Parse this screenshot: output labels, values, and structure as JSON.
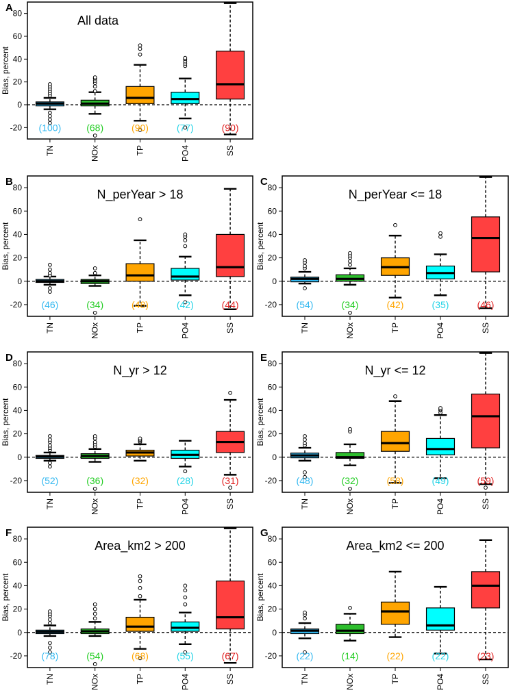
{
  "colors": {
    "TN": "#33B8F0",
    "NOx": "#2DBE2D",
    "TP": "#FFA500",
    "PO4": "#00FFFF",
    "SS": "#FF4040",
    "count_TN": "#33B8F0",
    "count_NOx": "#22CC22",
    "count_TP": "#FFA500",
    "count_PO4": "#22D3E6",
    "count_SS": "#E02020"
  },
  "chart_data": [
    {
      "type": "box",
      "panel": "A",
      "title": "All data",
      "ylabel": "Bias, percent",
      "ylim": [
        -30,
        90
      ],
      "yticks": [
        -20,
        0,
        20,
        40,
        60,
        80
      ],
      "reference_line": 0,
      "categories": [
        "TN",
        "NOx",
        "TP",
        "PO4",
        "SS"
      ],
      "counts": [
        "(100)",
        "(68)",
        "(90)",
        "(77)",
        "(90)"
      ],
      "boxes": [
        {
          "category": "TN",
          "whisker_low": -4,
          "q1": -1,
          "median": 1,
          "q3": 2.5,
          "whisker_high": 6,
          "outliers": [
            -16,
            -13,
            -10,
            -7,
            8,
            10,
            12,
            14,
            16,
            18
          ]
        },
        {
          "category": "NOx",
          "whisker_low": -8,
          "q1": -1,
          "median": 1,
          "q3": 4,
          "whisker_high": 11,
          "outliers": [
            -27,
            12,
            16,
            19,
            21,
            23,
            24
          ]
        },
        {
          "category": "TP",
          "whisker_low": -14,
          "q1": 1,
          "median": 6,
          "q3": 16,
          "whisker_high": 35,
          "outliers": [
            -22,
            44,
            49,
            52
          ]
        },
        {
          "category": "PO4",
          "whisker_low": -12,
          "q1": 1,
          "median": 5,
          "q3": 11,
          "whisker_high": 23,
          "outliers": [
            -20,
            34,
            36,
            38,
            40,
            41
          ]
        },
        {
          "category": "SS",
          "whisker_low": -26,
          "q1": 5,
          "median": 18,
          "q3": 47,
          "whisker_high": 89,
          "outliers": []
        }
      ]
    },
    {
      "type": "box",
      "panel": "B",
      "title": "N_perYear > 18",
      "ylabel": "Bias, percent",
      "ylim": [
        -30,
        90
      ],
      "yticks": [
        -20,
        0,
        20,
        40,
        60,
        80
      ],
      "reference_line": 0,
      "categories": [
        "TN",
        "NOx",
        "TP",
        "PO4",
        "SS"
      ],
      "counts": [
        "(46)",
        "(34)",
        "(48)",
        "(42)",
        "(44)"
      ],
      "boxes": [
        {
          "category": "TN",
          "whisker_low": -3,
          "q1": -1,
          "median": 0,
          "q3": 1.5,
          "whisker_high": 4,
          "outliers": [
            -9,
            -6,
            5,
            7,
            10,
            14
          ]
        },
        {
          "category": "NOx",
          "whisker_low": -4,
          "q1": -2,
          "median": 0,
          "q3": 1.5,
          "whisker_high": 5,
          "outliers": [
            -27,
            7,
            11
          ]
        },
        {
          "category": "TP",
          "whisker_low": -21,
          "q1": 0,
          "median": 5,
          "q3": 15,
          "whisker_high": 35,
          "outliers": [
            53
          ]
        },
        {
          "category": "PO4",
          "whisker_low": -12,
          "q1": 1,
          "median": 4,
          "q3": 11,
          "whisker_high": 21,
          "outliers": [
            -18,
            30,
            35,
            38,
            40
          ]
        },
        {
          "category": "SS",
          "whisker_low": -24,
          "q1": 4,
          "median": 12,
          "q3": 40,
          "whisker_high": 79,
          "outliers": []
        }
      ]
    },
    {
      "type": "box",
      "panel": "C",
      "title": "N_perYear <= 18",
      "ylabel": "Bias, percent",
      "ylim": [
        -30,
        90
      ],
      "yticks": [
        -20,
        0,
        20,
        40,
        60,
        80
      ],
      "reference_line": 0,
      "categories": [
        "TN",
        "NOx",
        "TP",
        "PO4",
        "SS"
      ],
      "counts": [
        "(54)",
        "(34)",
        "(42)",
        "(35)",
        "(46)"
      ],
      "boxes": [
        {
          "category": "TN",
          "whisker_low": -2,
          "q1": -0.5,
          "median": 2,
          "q3": 3.5,
          "whisker_high": 8,
          "outliers": [
            -6,
            11,
            13,
            16,
            18
          ]
        },
        {
          "category": "NOx",
          "whisker_low": -3,
          "q1": 0,
          "median": 2,
          "q3": 5.5,
          "whisker_high": 11,
          "outliers": [
            -27,
            14,
            17,
            20,
            22,
            24
          ]
        },
        {
          "category": "TP",
          "whisker_low": -14,
          "q1": 5,
          "median": 12,
          "q3": 20,
          "whisker_high": 39,
          "outliers": [
            48
          ]
        },
        {
          "category": "PO4",
          "whisker_low": -12,
          "q1": 2,
          "median": 7,
          "q3": 13,
          "whisker_high": 23,
          "outliers": [
            38,
            41
          ]
        },
        {
          "category": "SS",
          "whisker_low": -23,
          "q1": 8,
          "median": 37,
          "q3": 55,
          "whisker_high": 89,
          "outliers": []
        }
      ]
    },
    {
      "type": "box",
      "panel": "D",
      "title": "N_yr > 12",
      "ylabel": "Bias, percent",
      "ylim": [
        -30,
        90
      ],
      "yticks": [
        -20,
        0,
        20,
        40,
        60,
        80
      ],
      "reference_line": 0,
      "categories": [
        "TN",
        "NOx",
        "TP",
        "PO4",
        "SS"
      ],
      "counts": [
        "(52)",
        "(36)",
        "(32)",
        "(28)",
        "(31)"
      ],
      "boxes": [
        {
          "category": "TN",
          "whisker_low": -3,
          "q1": -1,
          "median": 0.5,
          "q3": 1.5,
          "whisker_high": 4,
          "outliers": [
            -8,
            -5,
            6,
            8,
            10,
            13,
            15,
            18
          ]
        },
        {
          "category": "NOx",
          "whisker_low": -4,
          "q1": -1,
          "median": 1,
          "q3": 3,
          "whisker_high": 7,
          "outliers": [
            -27,
            9,
            11,
            13,
            16,
            18
          ]
        },
        {
          "category": "TP",
          "whisker_low": -3,
          "q1": 1,
          "median": 4,
          "q3": 6,
          "whisker_high": 11,
          "outliers": [
            13,
            14,
            15,
            16
          ]
        },
        {
          "category": "PO4",
          "whisker_low": -8,
          "q1": -1,
          "median": 2,
          "q3": 6,
          "whisker_high": 14,
          "outliers": [
            -12
          ]
        },
        {
          "category": "SS",
          "whisker_low": -15,
          "q1": 4,
          "median": 13,
          "q3": 22,
          "whisker_high": 49,
          "outliers": [
            -26,
            55
          ]
        }
      ]
    },
    {
      "type": "box",
      "panel": "E",
      "title": "N_yr <= 12",
      "ylabel": "Bias, percent",
      "ylim": [
        -30,
        90
      ],
      "yticks": [
        -20,
        0,
        20,
        40,
        60,
        80
      ],
      "reference_line": 0,
      "categories": [
        "TN",
        "NOx",
        "TP",
        "PO4",
        "SS"
      ],
      "counts": [
        "(48)",
        "(32)",
        "(58)",
        "(49)",
        "(59)"
      ],
      "boxes": [
        {
          "category": "TN",
          "whisker_low": -3,
          "q1": -0.5,
          "median": 1.5,
          "q3": 3.5,
          "whisker_high": 8,
          "outliers": [
            -17,
            -13,
            10,
            12,
            15,
            18
          ]
        },
        {
          "category": "NOx",
          "whisker_low": -7,
          "q1": -1,
          "median": 0,
          "q3": 4,
          "whisker_high": 11,
          "outliers": [
            -27,
            22,
            24
          ]
        },
        {
          "category": "TP",
          "whisker_low": -22,
          "q1": 5,
          "median": 12,
          "q3": 22,
          "whisker_high": 48,
          "outliers": [
            52
          ]
        },
        {
          "category": "PO4",
          "whisker_low": -18,
          "q1": 2,
          "median": 7,
          "q3": 16,
          "whisker_high": 36,
          "outliers": [
            38,
            40,
            41,
            42
          ]
        },
        {
          "category": "SS",
          "whisker_low": -23,
          "q1": 8,
          "median": 35,
          "q3": 54,
          "whisker_high": 89,
          "outliers": [
            -26
          ]
        }
      ]
    },
    {
      "type": "box",
      "panel": "F",
      "title": "Area_km2 > 200",
      "ylabel": "Bias, percent",
      "ylim": [
        -30,
        90
      ],
      "yticks": [
        -20,
        0,
        20,
        40,
        60,
        80
      ],
      "reference_line": 0,
      "categories": [
        "TN",
        "NOx",
        "TP",
        "PO4",
        "SS"
      ],
      "counts": [
        "(78)",
        "(54)",
        "(68)",
        "(55)",
        "(67)"
      ],
      "boxes": [
        {
          "category": "TN",
          "whisker_low": -3,
          "q1": -1,
          "median": 0.5,
          "q3": 2,
          "whisker_high": 6,
          "outliers": [
            -17,
            -13,
            -9,
            8,
            11,
            14,
            16,
            18
          ]
        },
        {
          "category": "NOx",
          "whisker_low": -3,
          "q1": -1,
          "median": 1,
          "q3": 3,
          "whisker_high": 9,
          "outliers": [
            -27,
            12,
            16,
            20,
            24
          ]
        },
        {
          "category": "TP",
          "whisker_low": -14,
          "q1": 1,
          "median": 5,
          "q3": 13,
          "whisker_high": 28,
          "outliers": [
            -22,
            31,
            38,
            44,
            48
          ]
        },
        {
          "category": "PO4",
          "whisker_low": -10,
          "q1": 1,
          "median": 4,
          "q3": 9,
          "whisker_high": 17,
          "outliers": [
            -17,
            24,
            30,
            36,
            40
          ]
        },
        {
          "category": "SS",
          "whisker_low": -26,
          "q1": 3,
          "median": 13,
          "q3": 44,
          "whisker_high": 89,
          "outliers": []
        }
      ]
    },
    {
      "type": "box",
      "panel": "G",
      "title": "Area_km2 <= 200",
      "ylabel": "Bias, percent",
      "ylim": [
        -30,
        90
      ],
      "yticks": [
        -20,
        0,
        20,
        40,
        60,
        80
      ],
      "reference_line": 0,
      "categories": [
        "TN",
        "NOx",
        "TP",
        "PO4",
        "SS"
      ],
      "counts": [
        "(22)",
        "(14)",
        "(22)",
        "(22)",
        "(23)"
      ],
      "boxes": [
        {
          "category": "TN",
          "whisker_low": -5,
          "q1": -1,
          "median": 1.5,
          "q3": 3,
          "whisker_high": 8,
          "outliers": [
            -17,
            12,
            15,
            17
          ]
        },
        {
          "category": "NOx",
          "whisker_low": -7,
          "q1": -1,
          "median": 1.5,
          "q3": 7,
          "whisker_high": 16,
          "outliers": [
            21
          ]
        },
        {
          "category": "TP",
          "whisker_low": -4,
          "q1": 7,
          "median": 18,
          "q3": 26,
          "whisker_high": 52,
          "outliers": []
        },
        {
          "category": "PO4",
          "whisker_low": -18,
          "q1": 2,
          "median": 6,
          "q3": 21,
          "whisker_high": 39,
          "outliers": []
        },
        {
          "category": "SS",
          "whisker_low": -23,
          "q1": 21,
          "median": 40,
          "q3": 52,
          "whisker_high": 79,
          "outliers": []
        }
      ]
    }
  ]
}
